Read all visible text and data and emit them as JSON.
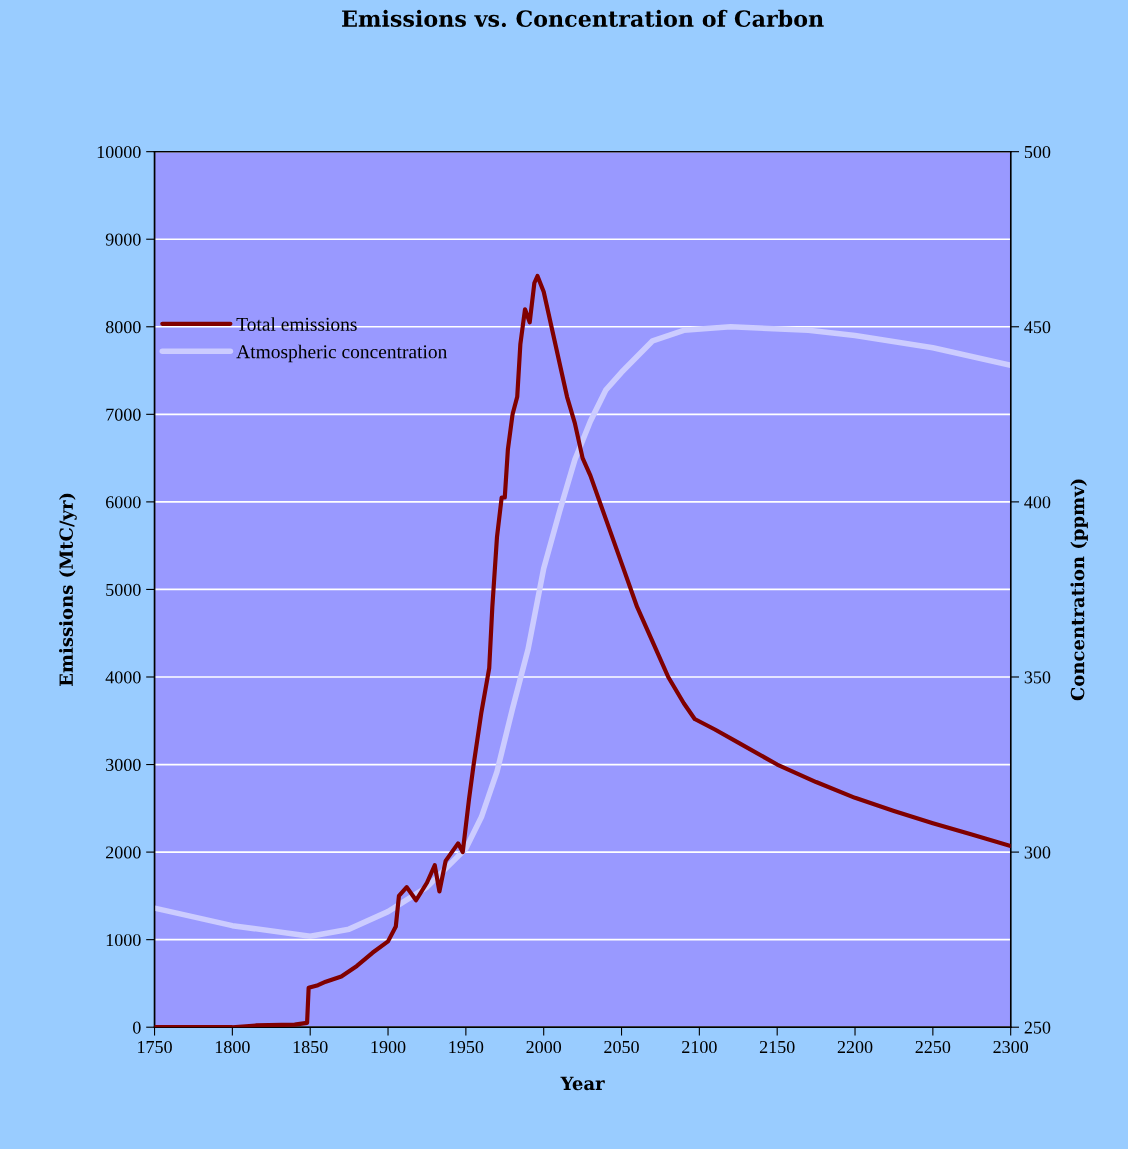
{
  "chart_data": {
    "type": "line",
    "title": "Emissions vs. Concentration of Carbon",
    "xlabel": "Year",
    "ylabel": "Emissions (MtC/yr)",
    "y2label": "Concentration (ppmv)",
    "series": [
      {
        "name": "Total emissions",
        "color": "#800000",
        "x": [
          1750,
          1800,
          1815,
          1840,
          1848,
          1849,
          1855,
          1860,
          1870,
          1880,
          1890,
          1900,
          1905,
          1907,
          1912,
          1918,
          1925,
          1930,
          1933,
          1937,
          1945,
          1948,
          1952,
          1955,
          1960,
          1965,
          1967,
          1970,
          1973,
          1975,
          1977,
          1980,
          1983,
          1985,
          1988,
          1991,
          1994,
          1996,
          2000,
          2005,
          2010,
          2015,
          2020,
          2025,
          2030,
          2040,
          2050,
          2060,
          2070,
          2080,
          2090,
          2097,
          2110,
          2125,
          2150,
          2175,
          2200,
          2225,
          2250,
          2275,
          2300
        ],
        "values": [
          0,
          0,
          20,
          30,
          50,
          450,
          480,
          520,
          580,
          700,
          850,
          980,
          1150,
          1500,
          1600,
          1450,
          1650,
          1850,
          1550,
          1900,
          2100,
          2000,
          2600,
          3000,
          3600,
          4100,
          4800,
          5600,
          6050,
          6050,
          6600,
          7000,
          7200,
          7800,
          8200,
          8050,
          8500,
          8580,
          8400,
          8000,
          7600,
          7200,
          6900,
          6500,
          6300,
          5800,
          5300,
          4800,
          4400,
          4000,
          3700,
          3520,
          3400,
          3250,
          3000,
          2800,
          2620,
          2470,
          2330,
          2200,
          2070
        ]
      },
      {
        "name": "Atmospheric concentration",
        "color": "#ccccff",
        "axis": "y2",
        "x": [
          1750,
          1800,
          1850,
          1875,
          1900,
          1925,
          1950,
          1960,
          1970,
          1980,
          1990,
          2000,
          2010,
          2020,
          2030,
          2040,
          2050,
          2070,
          2090,
          2120,
          2170,
          2200,
          2250,
          2300
        ],
        "values": [
          284,
          279,
          276,
          278,
          283,
          290,
          301,
          310,
          323,
          341,
          358,
          381,
          397,
          412,
          423,
          432,
          437,
          446,
          449,
          450,
          449,
          447.5,
          444,
          439
        ]
      }
    ],
    "xlim": [
      1750,
      2300
    ],
    "xticks": [
      1750,
      1800,
      1850,
      1900,
      1950,
      2000,
      2050,
      2100,
      2150,
      2200,
      2250,
      2300
    ],
    "ylim": [
      0,
      10000
    ],
    "yticks": [
      0,
      1000,
      2000,
      3000,
      4000,
      5000,
      6000,
      7000,
      8000,
      9000,
      10000
    ],
    "y2lim": [
      250,
      500
    ],
    "y2ticks": [
      250,
      300,
      350,
      400,
      450,
      500
    ],
    "grid": "y",
    "legend": "top left"
  }
}
